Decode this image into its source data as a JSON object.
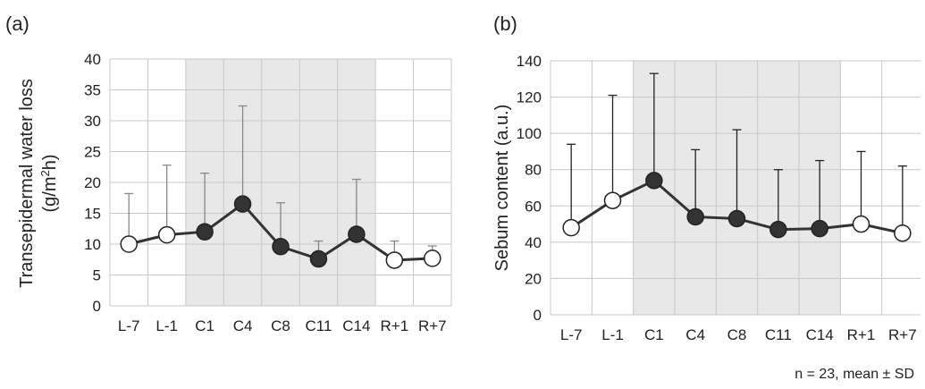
{
  "chart_data": [
    {
      "type": "line",
      "panel_label": "(a)",
      "ylabel_line1": "Transepidermal water loss",
      "ylabel_line2_prefix": "(g/m",
      "ylabel_line2_sup": "2",
      "ylabel_line2_suffix": "h)",
      "xlabel": "",
      "ylim": [
        0,
        40
      ],
      "yticks": [
        0,
        5,
        10,
        15,
        20,
        25,
        30,
        35,
        40
      ],
      "categories": [
        "L-7",
        "L-1",
        "C1",
        "C4",
        "C8",
        "C11",
        "C14",
        "R+1",
        "R+7"
      ],
      "values": [
        10.0,
        11.5,
        12.0,
        16.5,
        9.6,
        7.6,
        11.6,
        7.4,
        7.7
      ],
      "sd_upper": [
        18.2,
        22.8,
        21.5,
        32.4,
        16.7,
        10.5,
        20.5,
        10.5,
        9.7
      ],
      "filled": [
        false,
        false,
        true,
        true,
        true,
        true,
        true,
        false,
        false
      ],
      "shaded_range": [
        "C1",
        "C14"
      ],
      "grid": true,
      "colors": {
        "line": "#333333",
        "marker_fill": "#333333",
        "error": "#888888",
        "shade": "#e8e8e8",
        "grid": "#c8c8c8"
      }
    },
    {
      "type": "line",
      "panel_label": "(b)",
      "ylabel": "Sebum content (a.u.)",
      "xlabel": "",
      "ylim": [
        0,
        140
      ],
      "yticks": [
        0,
        20,
        40,
        60,
        80,
        100,
        120,
        140
      ],
      "categories": [
        "L-7",
        "L-1",
        "C1",
        "C4",
        "C8",
        "C11",
        "C14",
        "R+1",
        "R+7"
      ],
      "values": [
        48,
        63,
        74,
        54,
        53,
        47,
        47.5,
        50,
        45
      ],
      "sd_upper": [
        94,
        121,
        133,
        91,
        102,
        80,
        85,
        90,
        82
      ],
      "filled": [
        false,
        false,
        true,
        true,
        true,
        true,
        true,
        false,
        false
      ],
      "shaded_range": [
        "C1",
        "C14"
      ],
      "grid": true,
      "colors": {
        "line": "#333333",
        "marker_fill": "#333333",
        "error": "#222222",
        "shade": "#e8e8e8",
        "grid": "#c8c8c8"
      }
    }
  ],
  "footnote": "n = 23, mean ± SD"
}
